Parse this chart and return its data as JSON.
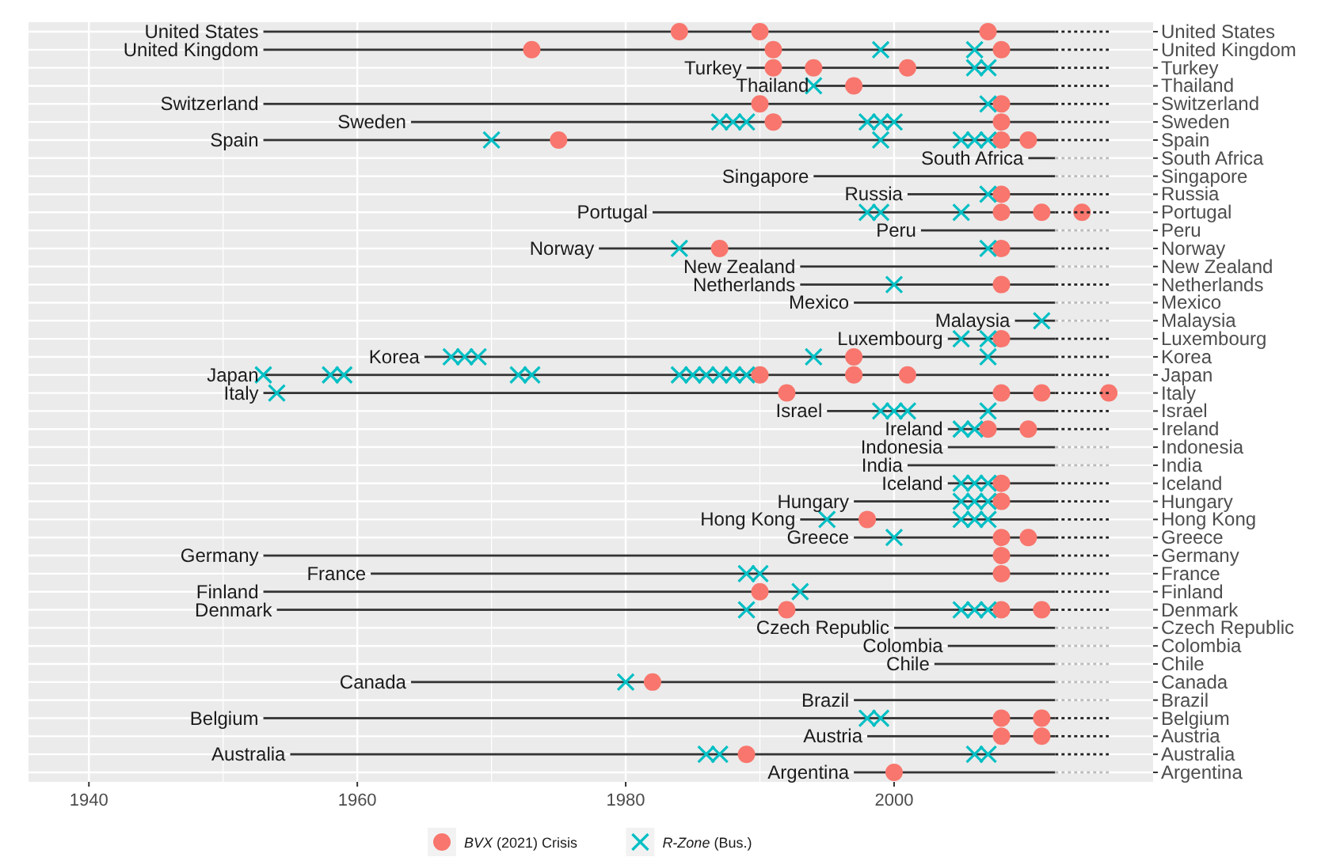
{
  "chart_data": {
    "type": "scatter",
    "orientation": "horizontal",
    "categories": [
      "United States",
      "United Kingdom",
      "Turkey",
      "Thailand",
      "Switzerland",
      "Sweden",
      "Spain",
      "South Africa",
      "Singapore",
      "Russia",
      "Portugal",
      "Peru",
      "Norway",
      "New Zealand",
      "Netherlands",
      "Mexico",
      "Malaysia",
      "Luxembourg",
      "Korea",
      "Japan",
      "Italy",
      "Israel",
      "Ireland",
      "Indonesia",
      "India",
      "Iceland",
      "Hungary",
      "Hong Kong",
      "Greece",
      "Germany",
      "France",
      "Finland",
      "Denmark",
      "Czech Republic",
      "Colombia",
      "Chile",
      "Canada",
      "Brazil",
      "Belgium",
      "Austria",
      "Australia",
      "Argentina"
    ],
    "xlim": [
      1935.5,
      2019.3
    ],
    "xticks": [
      1940,
      1960,
      1980,
      2000
    ],
    "grid": true,
    "legend": "bottom",
    "series": [
      {
        "type": "bar",
        "color": "#333333",
        "line_style": "solid",
        "base": [
          1953,
          1953,
          1989,
          1994,
          1953,
          1964,
          1953,
          2010,
          1994,
          2001,
          1982,
          2002,
          1978,
          1993,
          1993,
          1997,
          2009,
          2004,
          1965,
          1953,
          1953,
          1995,
          2004,
          2004,
          2001,
          2004,
          1997,
          1993,
          1997,
          1953,
          1961,
          1953,
          1954,
          2000,
          2004,
          2003,
          1964,
          1997,
          1953,
          1998,
          1955,
          1997
        ],
        "values": [
          59,
          59,
          23,
          18,
          59,
          48,
          59,
          2,
          18,
          11,
          30,
          10,
          34,
          19,
          19,
          15,
          3,
          8,
          47,
          59,
          59,
          17,
          8,
          8,
          11,
          8,
          15,
          19,
          15,
          59,
          51,
          59,
          58,
          12,
          8,
          9,
          48,
          15,
          59,
          14,
          57,
          15
        ]
      },
      {
        "type": "bar",
        "line_style": "dotted",
        "base": [
          2012,
          2012,
          2012,
          2012,
          2012,
          2012,
          2012,
          2012,
          2012,
          2012,
          2012,
          2012,
          2012,
          2012,
          2012,
          2012,
          2012,
          2012,
          2012,
          2012,
          2012,
          2012,
          2012,
          2012,
          2012,
          2012,
          2012,
          2012,
          2012,
          2012,
          2012,
          2012,
          2012,
          2012,
          2012,
          2012,
          2012,
          2012,
          2012,
          2012,
          2012,
          2012
        ],
        "values": [
          4,
          4,
          4,
          4,
          4,
          4,
          4,
          4,
          4,
          4,
          4,
          4,
          4,
          4,
          4,
          4,
          4,
          4,
          4,
          4,
          4,
          4,
          4,
          4,
          4,
          4,
          4,
          4,
          4,
          4,
          4,
          4,
          4,
          4,
          4,
          4,
          4,
          4,
          4,
          4,
          4,
          4
        ],
        "colors": [
          "#222222",
          "#222222",
          "#222222",
          "#222222",
          "#222222",
          "#222222",
          "#222222",
          "#bbbbbb",
          "#bbbbbb",
          "#222222",
          "#222222",
          "#bbbbbb",
          "#222222",
          "#bbbbbb",
          "#222222",
          "#bbbbbb",
          "#bbbbbb",
          "#222222",
          "#222222",
          "#222222",
          "#222222",
          "#222222",
          "#222222",
          "#bbbbbb",
          "#bbbbbb",
          "#222222",
          "#222222",
          "#222222",
          "#222222",
          "#222222",
          "#222222",
          "#222222",
          "#222222",
          "#bbbbbb",
          "#bbbbbb",
          "#bbbbbb",
          "#bbbbbb",
          "#bbbbbb",
          "#222222",
          "#222222",
          "#222222",
          "#bbbbbb"
        ]
      },
      {
        "name": "BVX (2021) Crisis",
        "color": "#f8766d",
        "marker": "circle",
        "x": [
          "United States",
          "United States",
          "United States",
          "United Kingdom",
          "United Kingdom",
          "United Kingdom",
          "Turkey",
          "Turkey",
          "Turkey",
          "Thailand",
          "Switzerland",
          "Switzerland",
          "Sweden",
          "Sweden",
          "Spain",
          "Spain",
          "Spain",
          "Russia",
          "Portugal",
          "Portugal",
          "Portugal",
          "Norway",
          "Norway",
          "Netherlands",
          "Luxembourg",
          "Korea",
          "Japan",
          "Japan",
          "Japan",
          "Italy",
          "Italy",
          "Italy",
          "Italy",
          "Ireland",
          "Ireland",
          "Iceland",
          "Hungary",
          "Hong Kong",
          "Greece",
          "Greece",
          "Germany",
          "France",
          "Finland",
          "Denmark",
          "Denmark",
          "Denmark",
          "Canada",
          "Belgium",
          "Belgium",
          "Austria",
          "Austria",
          "Australia",
          "Argentina"
        ],
        "values": [
          1984,
          1990,
          2007,
          1973,
          1991,
          2008,
          1991,
          1994,
          2001,
          1997,
          1990,
          2008,
          1991,
          2008,
          1975,
          2008,
          2010,
          2008,
          2008,
          2011,
          2014,
          1987,
          2008,
          2008,
          2008,
          1997,
          1990,
          1997,
          2001,
          1992,
          2008,
          2011,
          2016,
          2007,
          2010,
          2008,
          2008,
          1998,
          2008,
          2010,
          2008,
          2008,
          1990,
          1992,
          2008,
          2011,
          1982,
          2008,
          2011,
          2008,
          2011,
          1989,
          2000
        ]
      },
      {
        "name": "R-Zone (Bus.)",
        "color": "#00bfc4",
        "marker": "cross",
        "x": [
          "United Kingdom",
          "United Kingdom",
          "Turkey",
          "Turkey",
          "Thailand",
          "Switzerland",
          "Sweden",
          "Sweden",
          "Sweden",
          "Sweden",
          "Sweden",
          "Sweden",
          "Spain",
          "Spain",
          "Spain",
          "Spain",
          "Spain",
          "Russia",
          "Portugal",
          "Portugal",
          "Portugal",
          "Norway",
          "Norway",
          "Netherlands",
          "Malaysia",
          "Luxembourg",
          "Luxembourg",
          "Korea",
          "Korea",
          "Korea",
          "Korea",
          "Korea",
          "Japan",
          "Japan",
          "Japan",
          "Japan",
          "Japan",
          "Japan",
          "Japan",
          "Japan",
          "Japan",
          "Japan",
          "Japan",
          "Italy",
          "Israel",
          "Israel",
          "Israel",
          "Israel",
          "Ireland",
          "Ireland",
          "Iceland",
          "Iceland",
          "Iceland",
          "Hungary",
          "Hungary",
          "Hungary",
          "Hong Kong",
          "Hong Kong",
          "Hong Kong",
          "Hong Kong",
          "Greece",
          "France",
          "France",
          "Finland",
          "Denmark",
          "Denmark",
          "Denmark",
          "Denmark",
          "Canada",
          "Belgium",
          "Belgium",
          "Australia",
          "Australia",
          "Australia",
          "Australia"
        ],
        "values": [
          1999,
          2006,
          2006,
          2007,
          1994,
          2007,
          1987,
          1988,
          1989,
          1998,
          1999,
          2000,
          1970,
          1999,
          2005,
          2006,
          2007,
          2007,
          1998,
          1999,
          2005,
          1984,
          2007,
          2000,
          2011,
          2005,
          2007,
          1967,
          1968,
          1969,
          1994,
          2007,
          1953,
          1958,
          1959,
          1972,
          1973,
          1984,
          1985,
          1986,
          1987,
          1988,
          1989,
          1954,
          1999,
          2000,
          2001,
          2007,
          2005,
          2006,
          2005,
          2006,
          2007,
          2005,
          2006,
          2007,
          1995,
          2005,
          2006,
          2007,
          2000,
          1989,
          1990,
          1993,
          1989,
          2005,
          2006,
          2007,
          1980,
          1998,
          1999,
          1986,
          1987,
          2006,
          2007
        ]
      }
    ]
  }
}
